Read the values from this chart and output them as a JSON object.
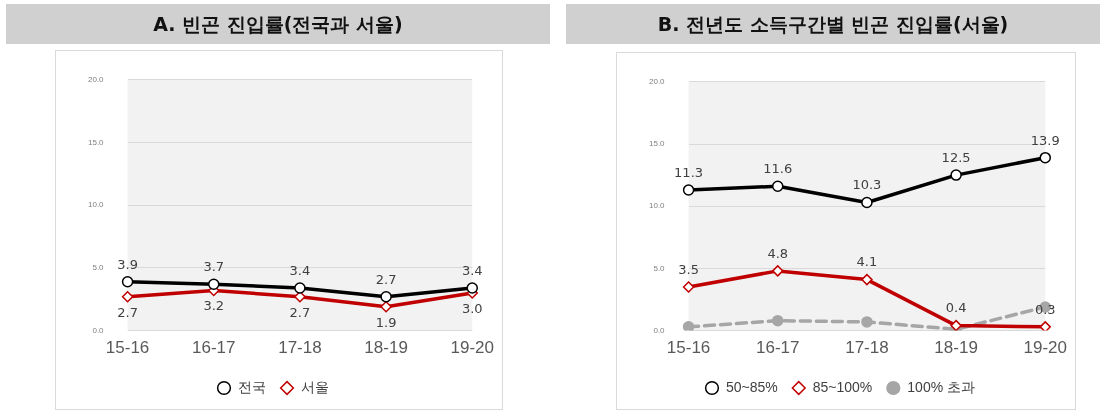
{
  "chart_data": [
    {
      "type": "line",
      "title": "A. 빈곤 진입률(전국과 서울)",
      "categories": [
        "15-16",
        "16-17",
        "17-18",
        "18-19",
        "19-20"
      ],
      "series": [
        {
          "name": "전국",
          "color": "#000000",
          "marker": "circle",
          "values": [
            3.9,
            3.7,
            3.4,
            2.7,
            3.4
          ],
          "value_labels": [
            "3.9",
            "3.7",
            "3.4",
            "2.7",
            "3.4"
          ]
        },
        {
          "name": "서울",
          "color": "#c00000",
          "marker": "diamond",
          "values": [
            2.7,
            3.2,
            2.7,
            1.9,
            3.0
          ],
          "value_labels": [
            "2.7",
            "3.2",
            "2.7",
            "1.9",
            "3.0"
          ]
        }
      ],
      "ylim": [
        0,
        20
      ],
      "yticks": [
        {
          "value": 0,
          "label": "0.0"
        },
        {
          "value": 5,
          "label": "5.0"
        },
        {
          "value": 10,
          "label": "10.0"
        },
        {
          "value": 15,
          "label": "15.0"
        },
        {
          "value": 20,
          "label": "20.0"
        }
      ],
      "grid": "y",
      "legend": "bottom"
    },
    {
      "type": "line",
      "title": "B. 전년도 소득구간별 빈곤 진입률(서울)",
      "categories": [
        "15-16",
        "16-17",
        "17-18",
        "18-19",
        "19-20"
      ],
      "series": [
        {
          "name": "50~85%",
          "color": "#000000",
          "marker": "circle",
          "values": [
            11.3,
            11.6,
            10.3,
            12.5,
            13.9
          ],
          "value_labels": [
            "11.3",
            "11.6",
            "10.3",
            "12.5",
            "13.9"
          ]
        },
        {
          "name": "85~100%",
          "color": "#c00000",
          "marker": "diamond",
          "values": [
            3.5,
            4.8,
            4.1,
            0.4,
            0.3
          ],
          "value_labels": [
            "3.5",
            "4.8",
            "4.1",
            "0.4",
            "0.3"
          ]
        },
        {
          "name": "100% 초과",
          "color": "#a6a6a6",
          "marker": "circle",
          "line_style": "dashed",
          "values": [
            0.3,
            0.8,
            0.7,
            0.1,
            1.9
          ]
        }
      ],
      "ylim": [
        0,
        20
      ],
      "yticks": [
        {
          "value": 0,
          "label": "0.0"
        },
        {
          "value": 5,
          "label": "5.0"
        },
        {
          "value": 10,
          "label": "10.0"
        },
        {
          "value": 15,
          "label": "15.0"
        },
        {
          "value": 20,
          "label": "20.0"
        }
      ],
      "grid": "y",
      "legend": "bottom"
    }
  ]
}
